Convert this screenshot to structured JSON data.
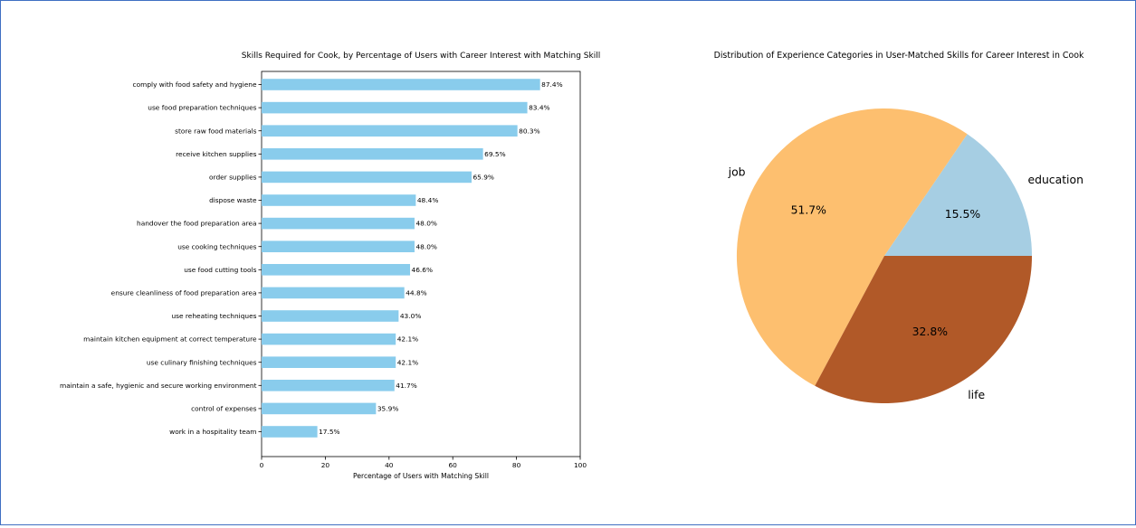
{
  "chart_data": [
    {
      "type": "bar",
      "orientation": "horizontal",
      "title": "Skills Required for Cook, by Percentage of Users with Career Interest with Matching Skill",
      "xlabel": "Percentage of Users with Matching Skill",
      "ylabel": "",
      "xlim": [
        0,
        100
      ],
      "xticks": [
        0,
        20,
        40,
        60,
        80,
        100
      ],
      "grid": false,
      "bar_color": "#89ccec",
      "categories": [
        "comply with food safety and hygiene",
        "use food preparation techniques",
        "store raw food materials",
        "receive kitchen supplies",
        "order supplies",
        "dispose waste",
        "handover the food preparation area",
        "use cooking techniques",
        "use food cutting tools",
        "ensure cleanliness of food preparation area",
        "use reheating techniques",
        "maintain kitchen equipment at correct temperature",
        "use culinary finishing techniques",
        "maintain a safe, hygienic and secure working environment",
        "control of expenses",
        "work in a hospitality team"
      ],
      "values": [
        87.4,
        83.4,
        80.3,
        69.5,
        65.9,
        48.4,
        48.0,
        48.0,
        46.6,
        44.8,
        43.0,
        42.1,
        42.1,
        41.7,
        35.9,
        17.5
      ],
      "value_labels": [
        "87.4%",
        "83.4%",
        "80.3%",
        "69.5%",
        "65.9%",
        "48.4%",
        "48.0%",
        "48.0%",
        "46.6%",
        "44.8%",
        "43.0%",
        "42.1%",
        "42.1%",
        "41.7%",
        "35.9%",
        "17.5%"
      ]
    },
    {
      "type": "pie",
      "title": "Distribution of Experience Categories in User-Matched Skills for Career Interest in Cook",
      "start_angle_deg": 0,
      "direction": "counterclockwise",
      "slices": [
        {
          "label": "education",
          "value": 15.5,
          "pct_label": "15.5%",
          "color": "#a6cee3"
        },
        {
          "label": "job",
          "value": 51.7,
          "pct_label": "51.7%",
          "color": "#fdbf6f"
        },
        {
          "label": "life",
          "value": 32.8,
          "pct_label": "32.8%",
          "color": "#b15928"
        }
      ]
    }
  ]
}
